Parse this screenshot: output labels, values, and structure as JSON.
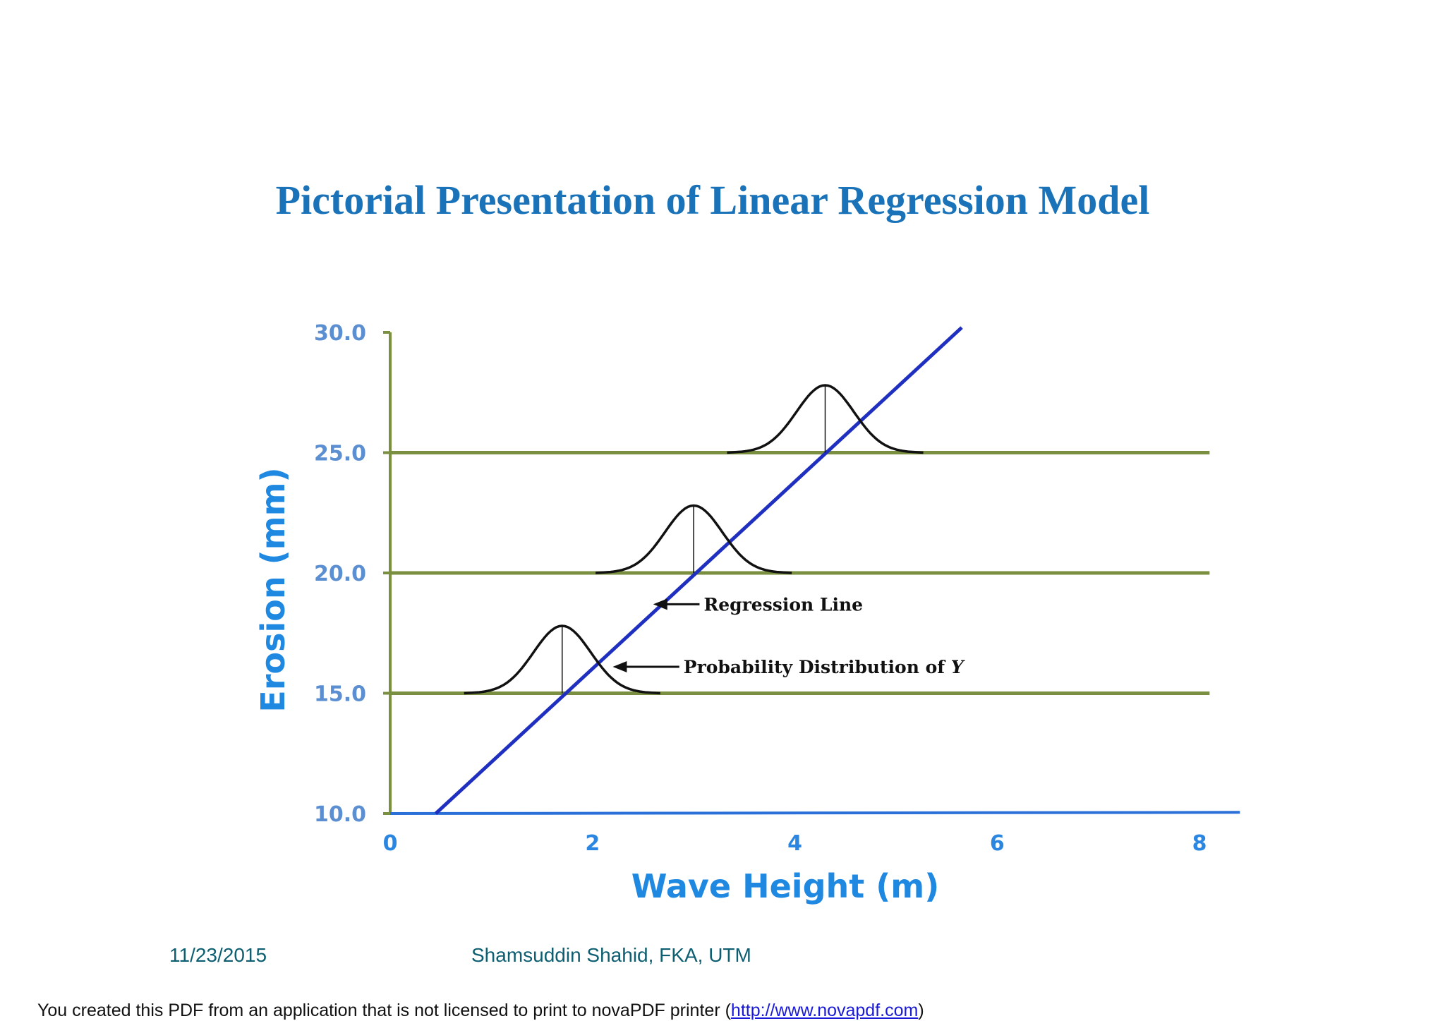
{
  "slide": {
    "title": "Pictorial Presentation of Linear Regression Model",
    "footer_date": "11/23/2015",
    "footer_author": "Shamsuddin Shahid, FKA, UTM"
  },
  "notice": {
    "text_before": "You created this PDF from an application that is not licensed to print to novaPDF printer (",
    "link_text": "http://www.novapdf.com",
    "text_after": ")"
  },
  "colors": {
    "title": "#1a73b8",
    "axis": "#7a9040",
    "regression_line": "#1f2fbf",
    "gridline": "#7a9040",
    "baseline": "#2a70d8",
    "curve": "#111111"
  },
  "chart_data": {
    "type": "line",
    "title": "",
    "xlabel": "Wave Height (m)",
    "ylabel": "Erosion (mm)",
    "xlim": [
      0,
      8
    ],
    "ylim": [
      10,
      30
    ],
    "x_ticks": [
      0,
      2,
      4,
      6,
      8
    ],
    "x_tick_labels": [
      "0",
      "2",
      "4",
      "6",
      "8"
    ],
    "y_ticks": [
      10,
      15,
      20,
      25,
      30
    ],
    "y_tick_labels": [
      "10.0",
      "15.0",
      "20.0",
      "25.0",
      "30.0"
    ],
    "reference_lines_y": [
      15,
      20,
      25
    ],
    "regression_line": {
      "x": [
        0.45,
        5.65
      ],
      "y": [
        10.0,
        30.2
      ]
    },
    "distributions": [
      {
        "center_x": 1.7,
        "base_y": 15,
        "peak_y": 17.8,
        "half_width": 0.85
      },
      {
        "center_x": 3.0,
        "base_y": 20,
        "peak_y": 22.8,
        "half_width": 0.85
      },
      {
        "center_x": 4.3,
        "base_y": 25,
        "peak_y": 27.8,
        "half_width": 0.85
      }
    ],
    "annotations": [
      {
        "text": "Regression Line",
        "arrow_to_x": 2.6,
        "arrow_to_y": 18.7,
        "text_x": 3.1,
        "text_y": 18.7
      },
      {
        "text": "Probability Distribution of ",
        "italic_suffix": "Y",
        "arrow_to_x": 2.2,
        "arrow_to_y": 16.1,
        "text_x": 2.9,
        "text_y": 16.1
      }
    ],
    "grid": false,
    "legend": "none"
  }
}
